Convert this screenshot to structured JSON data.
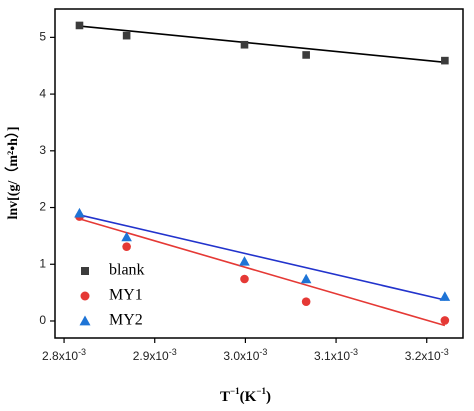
{
  "chart_data": {
    "type": "scatter",
    "xlabel_main": "T",
    "xlabel_sup": "−1",
    "xlabel_unit": "(K",
    "xlabel_unit_sup": "−1",
    "xlabel_close": ")",
    "ylabel": "lnv[(g/（m²•h）]",
    "xlim": [
      0.00279,
      0.00324
    ],
    "ylim": [
      -0.3,
      5.5
    ],
    "x_ticks": [
      {
        "value": 0.0028,
        "base": "2.8x10",
        "exp": "-3"
      },
      {
        "value": 0.0029,
        "base": "2.9x10",
        "exp": "-3"
      },
      {
        "value": 0.003,
        "base": "3.0x10",
        "exp": "-3"
      },
      {
        "value": 0.0031,
        "base": "3.1x10",
        "exp": "-3"
      },
      {
        "value": 0.0032,
        "base": "3.2x10",
        "exp": "-3"
      }
    ],
    "y_ticks": [
      "0",
      "1",
      "2",
      "3",
      "4",
      "5"
    ],
    "legend_position": "lower-left",
    "series": [
      {
        "name": "blank",
        "marker": "square",
        "color": "#3c3c3c",
        "line_color": "#000000",
        "x": [
          0.002817,
          0.002869,
          0.002999,
          0.003067,
          0.00322
        ],
        "y": [
          5.21,
          5.03,
          4.87,
          4.69,
          4.59
        ],
        "fit": [
          [
            0.002817,
            5.2
          ],
          [
            0.00322,
            4.56
          ]
        ]
      },
      {
        "name": "MY1",
        "marker": "circle",
        "color": "#e53935",
        "line_color": "#e53935",
        "x": [
          0.002817,
          0.002869,
          0.002999,
          0.003067,
          0.00322
        ],
        "y": [
          1.84,
          1.31,
          0.74,
          0.34,
          0.01
        ],
        "fit": [
          [
            0.002817,
            1.8
          ],
          [
            0.00322,
            -0.08
          ]
        ]
      },
      {
        "name": "MY2",
        "marker": "triangle",
        "color": "#1e74d6",
        "line_color": "#2233cc",
        "x": [
          0.002817,
          0.002869,
          0.002999,
          0.003067,
          0.00322
        ],
        "y": [
          1.9,
          1.48,
          1.05,
          0.74,
          0.43
        ],
        "fit": [
          [
            0.002817,
            1.87
          ],
          [
            0.00322,
            0.37
          ]
        ]
      }
    ]
  }
}
